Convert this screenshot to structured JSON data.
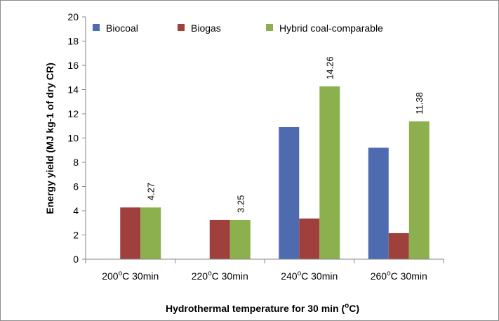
{
  "chart_data": {
    "type": "bar",
    "ylabel": "Energy yield (MJ kg-1 of dry CR)",
    "xlabel_parts": [
      "Hydrothermal temperature for 30 min (",
      "o",
      "C)"
    ],
    "ylim": [
      0,
      20
    ],
    "yticks": [
      "0",
      "2",
      "4",
      "6",
      "8",
      "10",
      "12",
      "14",
      "16",
      "18",
      "20"
    ],
    "legend_position": "top",
    "categories": [
      {
        "pre": "200",
        "sup": "o",
        "post": "C 30min"
      },
      {
        "pre": "220",
        "sup": "o",
        "post": "C 30min"
      },
      {
        "pre": "240",
        "sup": "o",
        "post": "C 30min"
      },
      {
        "pre": "260",
        "sup": "o",
        "post": "C 30min"
      }
    ],
    "series": [
      {
        "name": "Biocoal",
        "color": "#4f6bb0",
        "values": [
          0,
          0,
          10.9,
          9.2
        ]
      },
      {
        "name": "Biogas",
        "color": "#a0403d",
        "values": [
          4.27,
          3.25,
          3.35,
          2.15
        ]
      },
      {
        "name": "Hybrid coal-comparable",
        "color": "#8db04f",
        "values": [
          4.27,
          3.25,
          14.26,
          11.38
        ],
        "labels": [
          "4.27",
          "3.25",
          "14.26",
          "11.38"
        ]
      }
    ]
  }
}
